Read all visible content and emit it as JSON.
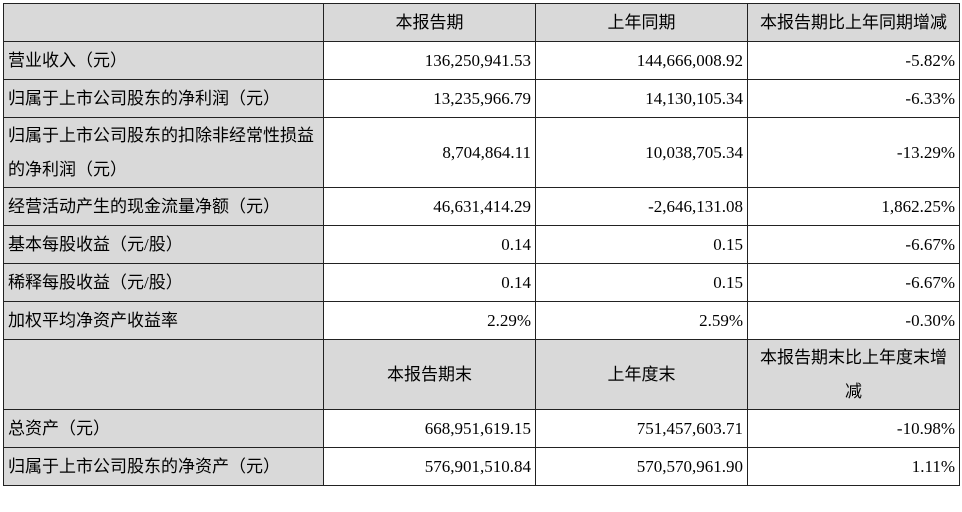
{
  "header1": {
    "label": "",
    "col1": "本报告期",
    "col2": "上年同期",
    "col3": "本报告期比上年同期增减"
  },
  "rows1": [
    {
      "label": "营业收入（元）",
      "v1": "136,250,941.53",
      "v2": "144,666,008.92",
      "v3": "-5.82%"
    },
    {
      "label": "归属于上市公司股东的净利润（元）",
      "v1": "13,235,966.79",
      "v2": "14,130,105.34",
      "v3": "-6.33%"
    },
    {
      "label": "归属于上市公司股东的扣除非经常性损益的净利润（元）",
      "v1": "8,704,864.11",
      "v2": "10,038,705.34",
      "v3": "-13.29%"
    },
    {
      "label": "经营活动产生的现金流量净额（元）",
      "v1": "46,631,414.29",
      "v2": "-2,646,131.08",
      "v3": "1,862.25%"
    },
    {
      "label": "基本每股收益（元/股）",
      "v1": "0.14",
      "v2": "0.15",
      "v3": "-6.67%"
    },
    {
      "label": "稀释每股收益（元/股）",
      "v1": "0.14",
      "v2": "0.15",
      "v3": "-6.67%"
    },
    {
      "label": "加权平均净资产收益率",
      "v1": "2.29%",
      "v2": "2.59%",
      "v3": "-0.30%"
    }
  ],
  "header2": {
    "label": "",
    "col1": "本报告期末",
    "col2": "上年度末",
    "col3": "本报告期末比上年度末增减"
  },
  "rows2": [
    {
      "label": "总资产（元）",
      "v1": "668,951,619.15",
      "v2": "751,457,603.71",
      "v3": "-10.98%"
    },
    {
      "label": "归属于上市公司股东的净资产（元）",
      "v1": "576,901,510.84",
      "v2": "570,570,961.90",
      "v3": "1.11%"
    }
  ]
}
